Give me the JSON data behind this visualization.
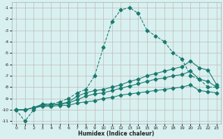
{
  "title": "",
  "xlabel": "Humidex (Indice chaleur)",
  "background_color": "#d8f0f0",
  "grid_color": "#c0b8b8",
  "line_color": "#1a7a6e",
  "xlim": [
    -0.5,
    23.5
  ],
  "ylim": [
    -11.2,
    -0.5
  ],
  "yticks": [
    -11,
    -10,
    -9,
    -8,
    -7,
    -6,
    -5,
    -4,
    -3,
    -2,
    -1
  ],
  "xticks": [
    0,
    1,
    2,
    3,
    4,
    5,
    6,
    7,
    8,
    9,
    10,
    11,
    12,
    13,
    14,
    15,
    16,
    17,
    18,
    19,
    20,
    21,
    22,
    23
  ],
  "series": [
    {
      "x": [
        0,
        1,
        2,
        3,
        4,
        5,
        6,
        7,
        8,
        9,
        10,
        11,
        12,
        13,
        14,
        15,
        16,
        17,
        18,
        19,
        20,
        21,
        22,
        23
      ],
      "y": [
        -10.0,
        -11.0,
        -10.0,
        -9.5,
        -9.5,
        -9.3,
        -9.0,
        -8.5,
        -8.2,
        -7.0,
        -4.5,
        -2.2,
        -1.2,
        -1.0,
        -1.5,
        -3.0,
        -3.5,
        -4.0,
        -5.0,
        -5.5,
        -7.0,
        -7.3,
        -8.0,
        -8.0
      ],
      "style": "--",
      "marker": "D",
      "markersize": 2.5,
      "linewidth": 0.8
    },
    {
      "x": [
        0,
        1,
        2,
        3,
        4,
        5,
        6,
        7,
        8,
        9,
        10,
        11,
        12,
        13,
        14,
        15,
        16,
        17,
        18,
        19,
        20,
        21,
        22,
        23
      ],
      "y": [
        -10.0,
        -10.0,
        -9.8,
        -9.5,
        -9.5,
        -9.5,
        -9.3,
        -8.8,
        -8.5,
        -8.3,
        -8.2,
        -8.0,
        -7.8,
        -7.5,
        -7.3,
        -7.0,
        -6.8,
        -6.6,
        -6.4,
        -6.2,
        -5.7,
        -6.3,
        -6.5,
        -7.8
      ],
      "style": "-",
      "marker": "D",
      "markersize": 2.5,
      "linewidth": 0.8
    },
    {
      "x": [
        0,
        1,
        2,
        3,
        4,
        5,
        6,
        7,
        8,
        9,
        10,
        11,
        12,
        13,
        14,
        15,
        16,
        17,
        18,
        19,
        20,
        21,
        22,
        23
      ],
      "y": [
        -10.0,
        -10.0,
        -9.8,
        -9.6,
        -9.6,
        -9.5,
        -9.4,
        -9.1,
        -8.8,
        -8.6,
        -8.5,
        -8.3,
        -8.1,
        -7.9,
        -7.7,
        -7.5,
        -7.3,
        -7.2,
        -7.0,
        -6.9,
        -6.6,
        -7.3,
        -7.5,
        -8.0
      ],
      "style": "-",
      "marker": "D",
      "markersize": 2.5,
      "linewidth": 0.8
    },
    {
      "x": [
        0,
        1,
        2,
        3,
        4,
        5,
        6,
        7,
        8,
        9,
        10,
        11,
        12,
        13,
        14,
        15,
        16,
        17,
        18,
        19,
        20,
        21,
        22,
        23
      ],
      "y": [
        -10.0,
        -10.0,
        -9.8,
        -9.7,
        -9.7,
        -9.6,
        -9.6,
        -9.4,
        -9.3,
        -9.2,
        -9.0,
        -8.9,
        -8.7,
        -8.6,
        -8.5,
        -8.4,
        -8.3,
        -8.2,
        -8.1,
        -8.0,
        -7.8,
        -8.3,
        -8.4,
        -8.5
      ],
      "style": "-",
      "marker": "D",
      "markersize": 2.5,
      "linewidth": 0.8
    }
  ]
}
